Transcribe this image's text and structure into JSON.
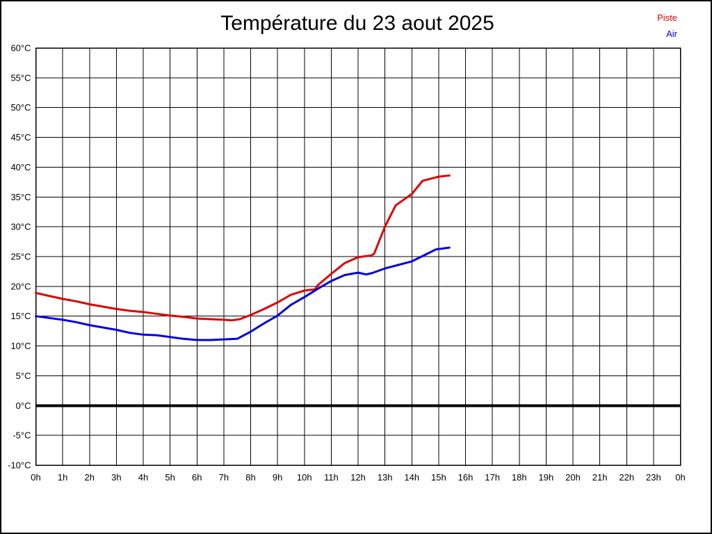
{
  "title": "Température du 23 aout 2025",
  "legend": {
    "piste": "Piste",
    "air": "Air"
  },
  "chart_data": {
    "type": "line",
    "title": "Température du 23 aout 2025",
    "xlabel": "",
    "ylabel": "",
    "xlim": [
      0,
      24
    ],
    "ylim": [
      -10,
      60
    ],
    "grid": true,
    "x_tick_labels": [
      "0h",
      "1h",
      "2h",
      "3h",
      "4h",
      "5h",
      "6h",
      "7h",
      "8h",
      "9h",
      "10h",
      "11h",
      "12h",
      "13h",
      "14h",
      "15h",
      "16h",
      "17h",
      "18h",
      "19h",
      "20h",
      "21h",
      "22h",
      "23h",
      "0h"
    ],
    "x_tick_values": [
      0,
      1,
      2,
      3,
      4,
      5,
      6,
      7,
      8,
      9,
      10,
      11,
      12,
      13,
      14,
      15,
      16,
      17,
      18,
      19,
      20,
      21,
      22,
      23,
      24
    ],
    "y_tick_labels": [
      "60°C",
      "55°C",
      "50°C",
      "45°C",
      "40°C",
      "35°C",
      "30°C",
      "25°C",
      "20°C",
      "15°C",
      "10°C",
      "5°C",
      "0°C",
      "-5°C",
      "-10°C"
    ],
    "y_tick_values": [
      60,
      55,
      50,
      45,
      40,
      35,
      30,
      25,
      20,
      15,
      10,
      5,
      0,
      -5,
      -10
    ],
    "zero_line": {
      "value": 0,
      "color": "#000000",
      "width": 4
    },
    "grid_color": "#000000",
    "legend_position": "top-right",
    "series": [
      {
        "name": "Piste",
        "color": "#e00000",
        "width": 3,
        "points": [
          [
            0,
            18.9
          ],
          [
            0.5,
            18.4
          ],
          [
            1,
            17.9
          ],
          [
            1.5,
            17.5
          ],
          [
            2,
            17.0
          ],
          [
            2.5,
            16.6
          ],
          [
            3,
            16.2
          ],
          [
            3.5,
            15.9
          ],
          [
            4,
            15.7
          ],
          [
            4.5,
            15.4
          ],
          [
            5,
            15.1
          ],
          [
            5.5,
            14.9
          ],
          [
            6,
            14.6
          ],
          [
            6.5,
            14.5
          ],
          [
            7,
            14.4
          ],
          [
            7.3,
            14.3
          ],
          [
            7.6,
            14.5
          ],
          [
            8,
            15.2
          ],
          [
            8.5,
            16.2
          ],
          [
            9,
            17.3
          ],
          [
            9.5,
            18.6
          ],
          [
            10,
            19.3
          ],
          [
            10.4,
            19.5
          ],
          [
            10.5,
            20.2
          ],
          [
            11,
            22.1
          ],
          [
            11.5,
            23.9
          ],
          [
            12,
            24.9
          ],
          [
            12.5,
            25.2
          ],
          [
            12.6,
            25.5
          ],
          [
            13,
            30.0
          ],
          [
            13.4,
            33.6
          ],
          [
            14,
            35.5
          ],
          [
            14.4,
            37.7
          ],
          [
            15,
            38.4
          ],
          [
            15.4,
            38.6
          ]
        ]
      },
      {
        "name": "Air",
        "color": "#0000dd",
        "width": 3,
        "points": [
          [
            0,
            15.0
          ],
          [
            0.5,
            14.7
          ],
          [
            1,
            14.4
          ],
          [
            1.5,
            14.0
          ],
          [
            2,
            13.5
          ],
          [
            2.5,
            13.1
          ],
          [
            3,
            12.7
          ],
          [
            3.5,
            12.2
          ],
          [
            4,
            11.9
          ],
          [
            4.5,
            11.8
          ],
          [
            5,
            11.5
          ],
          [
            5.5,
            11.2
          ],
          [
            6,
            11.0
          ],
          [
            6.5,
            11.0
          ],
          [
            7,
            11.1
          ],
          [
            7.5,
            11.2
          ],
          [
            8,
            12.4
          ],
          [
            8.5,
            13.8
          ],
          [
            9,
            15.1
          ],
          [
            9.5,
            16.9
          ],
          [
            10,
            18.2
          ],
          [
            10.5,
            19.6
          ],
          [
            11,
            20.9
          ],
          [
            11.5,
            21.9
          ],
          [
            12,
            22.3
          ],
          [
            12.3,
            22.0
          ],
          [
            12.5,
            22.2
          ],
          [
            13,
            23.0
          ],
          [
            13.5,
            23.6
          ],
          [
            14,
            24.2
          ],
          [
            14.5,
            25.3
          ],
          [
            14.9,
            26.2
          ],
          [
            15.4,
            26.5
          ]
        ]
      }
    ]
  }
}
